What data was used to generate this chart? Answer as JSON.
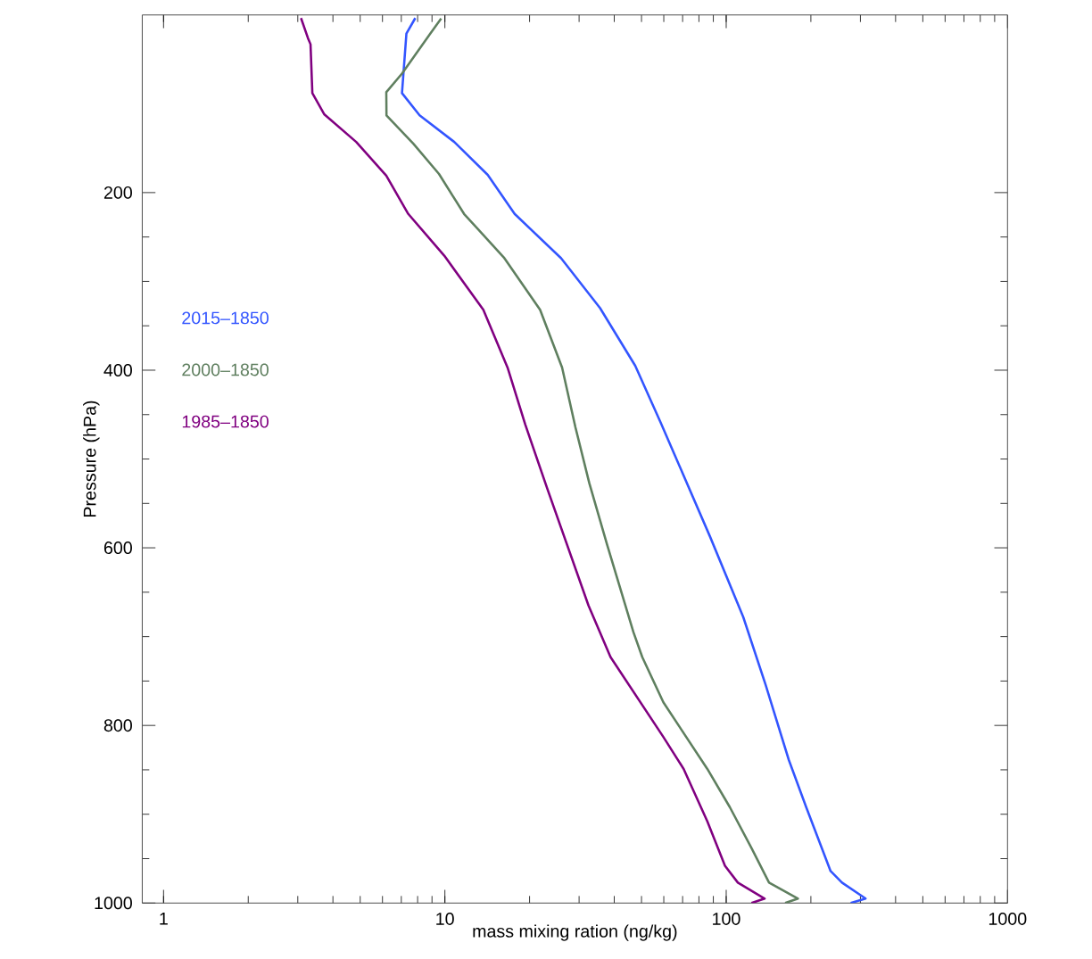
{
  "chart_data": {
    "type": "line",
    "xlabel": "mass mixing ration (ng/kg)",
    "ylabel": "Pressure (hPa)",
    "log": "x",
    "xlim": [
      0.84,
      1000
    ],
    "ylim": [
      1000,
      0
    ],
    "xticks": [
      1,
      10,
      100,
      1000
    ],
    "yticks": [
      200,
      400,
      600,
      800,
      1000
    ],
    "grid": false,
    "legend": "left",
    "marker": "none",
    "line_style": "solid",
    "series": [
      {
        "name": "2015–1850",
        "color": "#3355ff",
        "x": [
          7.85,
          7.3,
          7.04,
          8.13,
          10.8,
          14.2,
          17.7,
          25.9,
          35.6,
          47.5,
          58.5,
          87.5,
          115,
          138,
          167,
          193,
          235,
          258,
          313,
          277
        ],
        "values": [
          3.5,
          21,
          88,
          113,
          143,
          180,
          224,
          274,
          330,
          395,
          459,
          587,
          678,
          754,
          839,
          893,
          964,
          977,
          995,
          1000
        ]
      },
      {
        "name": "2000–1850",
        "color": "#5f7f5f",
        "x": [
          9.7,
          8.87,
          7.04,
          6.19,
          6.2,
          7.73,
          9.53,
          11.7,
          16.2,
          21.8,
          26.1,
          29.1,
          32.6,
          37.7,
          46.8,
          50.3,
          59.8,
          85.7,
          103,
          123,
          142,
          180,
          162
        ],
        "values": [
          4,
          21,
          66,
          87,
          113,
          145,
          179,
          224,
          273,
          332,
          397,
          464,
          527,
          596,
          695,
          723,
          774,
          849,
          892,
          938,
          977,
          995,
          1000
        ]
      },
      {
        "name": "1985–1850",
        "color": "#800080",
        "x": [
          3.08,
          3.26,
          3.33,
          3.38,
          3.73,
          4.84,
          6.19,
          7.41,
          9.95,
          13.7,
          16.7,
          19.3,
          23.1,
          32.4,
          38.8,
          59.8,
          70.6,
          85.7,
          99,
          110,
          137,
          123
        ],
        "values": [
          3.5,
          26,
          33,
          88,
          112,
          143,
          181,
          224,
          271,
          332,
          397,
          461,
          533,
          665,
          723,
          813,
          849,
          908,
          958,
          977,
          995,
          1000
        ]
      }
    ]
  }
}
